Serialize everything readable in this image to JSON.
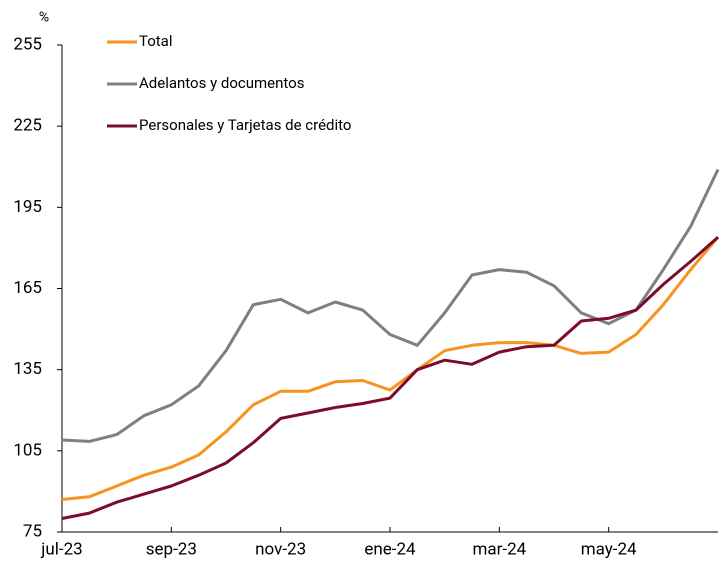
{
  "chart_data": {
    "type": "line",
    "y_label": "%",
    "categories": [
      "jul-23",
      null,
      null,
      null,
      "sep-23",
      null,
      null,
      null,
      "nov-23",
      null,
      null,
      null,
      "ene-24",
      null,
      null,
      null,
      "mar-24",
      null,
      null,
      null,
      "may-24",
      null,
      null,
      null,
      null
    ],
    "series": [
      {
        "name": "Total",
        "color": "#f7931e",
        "values": [
          87,
          88,
          92,
          96,
          99,
          103.5,
          112,
          122,
          127,
          127,
          130.5,
          131,
          127.5,
          135,
          142,
          144,
          145,
          145,
          144,
          141,
          141.5,
          148,
          159,
          172,
          184
        ]
      },
      {
        "name": "Adelantos y documentos",
        "color": "#7f7f7f",
        "values": [
          109,
          108.5,
          111,
          118,
          122,
          129,
          142,
          159,
          161,
          156,
          160,
          157,
          148,
          144,
          156,
          170,
          172,
          171,
          166,
          156,
          152,
          157,
          172,
          188,
          209
        ]
      },
      {
        "name": "Personales y Tarjetas de crédito",
        "color": "#7b0d2a",
        "values": [
          80,
          82,
          86,
          89,
          92,
          96,
          100.5,
          108,
          117,
          119,
          121,
          122.5,
          124.5,
          135,
          138.5,
          137,
          141.5,
          143.5,
          144,
          153,
          154,
          157,
          166.5,
          175,
          184
        ]
      }
    ],
    "ylim": [
      75,
      255
    ],
    "yticks": [
      75,
      105,
      135,
      165,
      195,
      225,
      255
    ],
    "grid": false,
    "legend": "top-left"
  }
}
